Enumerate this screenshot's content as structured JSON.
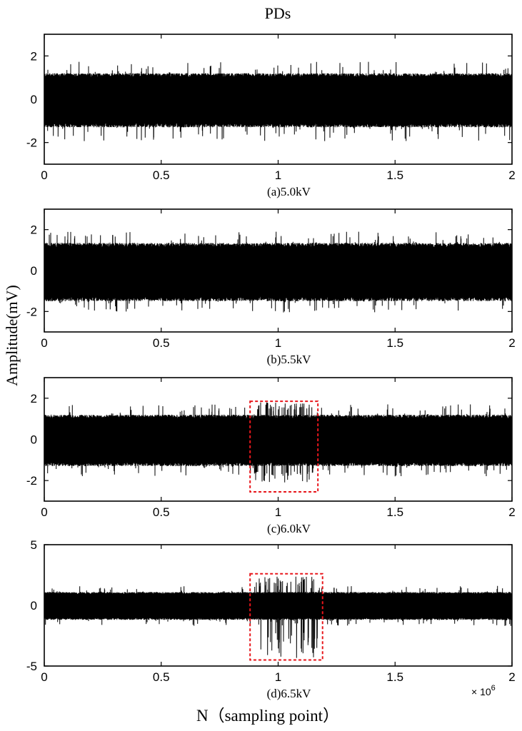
{
  "title": "PDs",
  "ylabel": "Amplitude(mV)",
  "xlabel": "N（sampling point）",
  "exponent_base": "× 10",
  "exponent_power": "6",
  "chart_data": [
    {
      "type": "line",
      "caption": "(a)5.0kV",
      "xlim": [
        0,
        2
      ],
      "ylim": [
        -3,
        3
      ],
      "xticks": [
        "0",
        "0.5",
        "1",
        "1.5",
        "2"
      ],
      "yticks": [
        {
          "v": 2,
          "label": "2"
        },
        {
          "v": 0,
          "label": "0"
        },
        {
          "v": -2,
          "label": "-2"
        }
      ],
      "noise": {
        "env_pos": 1.2,
        "env_neg": -1.3,
        "max": 1.75,
        "min": -1.95
      },
      "burst": null,
      "highlight": null,
      "color": "#000000"
    },
    {
      "type": "line",
      "caption": "(b)5.5kV",
      "xlim": [
        0,
        2
      ],
      "ylim": [
        -3,
        3
      ],
      "xticks": [
        "0",
        "0.5",
        "1",
        "1.5",
        "2"
      ],
      "yticks": [
        {
          "v": 2,
          "label": "2"
        },
        {
          "v": 0,
          "label": "0"
        },
        {
          "v": -2,
          "label": "-2"
        }
      ],
      "noise": {
        "env_pos": 1.35,
        "env_neg": -1.5,
        "max": 1.9,
        "min": -2.05
      },
      "burst": null,
      "highlight": null,
      "color": "#000000"
    },
    {
      "type": "line",
      "caption": "(c)6.0kV",
      "xlim": [
        0,
        2
      ],
      "ylim": [
        -3,
        3
      ],
      "xticks": [
        "0",
        "0.5",
        "1",
        "1.5",
        "2"
      ],
      "yticks": [
        {
          "v": 2,
          "label": "2"
        },
        {
          "v": 0,
          "label": "0"
        },
        {
          "v": -2,
          "label": "-2"
        }
      ],
      "noise": {
        "env_pos": 1.2,
        "env_neg": -1.3,
        "max": 1.7,
        "min": -1.8
      },
      "burst": {
        "x0": 0.9,
        "x1": 1.15,
        "max": 1.8,
        "min": -2.1
      },
      "highlight": {
        "x0": 0.88,
        "x1": 1.17,
        "y0": -2.55,
        "y1": 1.85
      },
      "color": "#000000"
    },
    {
      "type": "line",
      "caption": "(d)6.5kV",
      "xlim": [
        0,
        2
      ],
      "ylim": [
        -5,
        5
      ],
      "xticks": [
        "0",
        "0.5",
        "1",
        "1.5",
        "2"
      ],
      "yticks": [
        {
          "v": 5,
          "label": "5"
        },
        {
          "v": 0,
          "label": "0"
        },
        {
          "v": -5,
          "label": "-5"
        }
      ],
      "noise": {
        "env_pos": 1.1,
        "env_neg": -1.2,
        "max": 1.6,
        "min": -1.7
      },
      "burst": {
        "x0": 0.9,
        "x1": 1.17,
        "max": 2.4,
        "min": -4.5
      },
      "highlight": {
        "x0": 0.88,
        "x1": 1.19,
        "y0": -4.5,
        "y1": 2.6
      },
      "color": "#000000"
    }
  ]
}
